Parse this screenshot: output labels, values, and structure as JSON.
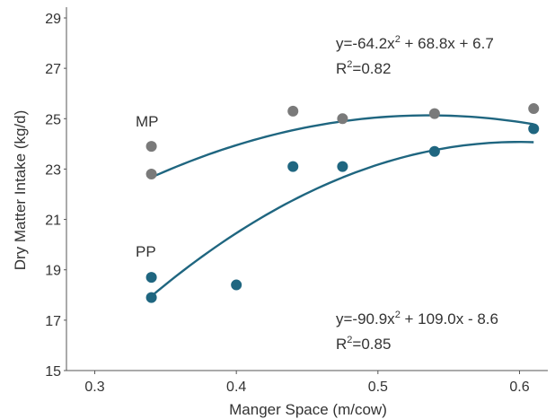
{
  "chart_data": {
    "type": "scatter",
    "xlabel": "Manger Space (m/cow)",
    "ylabel": "Dry Matter Intake (kg/d)",
    "xlim": [
      0.28,
      0.62
    ],
    "ylim": [
      15,
      29
    ],
    "x_ticks": [
      "0.3",
      "0.4",
      "0.5",
      "0.6"
    ],
    "x_tick_values": [
      0.3,
      0.4,
      0.5,
      0.6
    ],
    "y_ticks": [
      "15",
      "17",
      "19",
      "21",
      "23",
      "25",
      "27",
      "29"
    ],
    "y_tick_values": [
      15,
      17,
      19,
      21,
      23,
      25,
      27,
      29
    ],
    "grid": false,
    "series": [
      {
        "name": "MP",
        "color": "#7a7a7a",
        "points": [
          [
            0.34,
            23.9
          ],
          [
            0.34,
            22.8
          ],
          [
            0.44,
            25.3
          ],
          [
            0.475,
            25.0
          ],
          [
            0.54,
            25.2
          ],
          [
            0.61,
            25.4
          ]
        ],
        "fit": {
          "a": -64.2,
          "b": 68.8,
          "c": 6.7,
          "x_range": [
            0.34,
            0.61
          ],
          "color": "#1f6680"
        },
        "equation": {
          "prefix": "y=-64.2x",
          "sup": "2",
          "suffix": " + 68.8x + 6.7",
          "r2_prefix": "R",
          "r2_sup": "2",
          "r2_suffix": "=0.82"
        }
      },
      {
        "name": "PP",
        "color": "#1f6680",
        "points": [
          [
            0.34,
            18.7
          ],
          [
            0.34,
            17.9
          ],
          [
            0.4,
            18.4
          ],
          [
            0.44,
            23.1
          ],
          [
            0.475,
            23.1
          ],
          [
            0.54,
            23.7
          ],
          [
            0.61,
            24.6
          ]
        ],
        "fit": {
          "a": -90.9,
          "b": 109.0,
          "c": -8.6,
          "x_range": [
            0.34,
            0.61
          ],
          "color": "#1f6680"
        },
        "equation": {
          "prefix": "y=-90.9x",
          "sup": "2",
          "suffix": " + 109.0x - 8.6",
          "r2_prefix": "R",
          "r2_sup": "2",
          "r2_suffix": "=0.85"
        }
      }
    ]
  }
}
